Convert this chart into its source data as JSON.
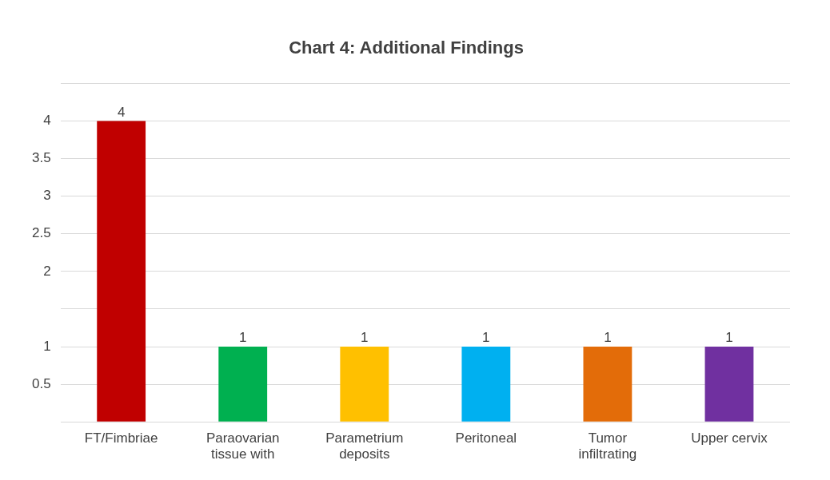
{
  "chart_data": {
    "type": "bar",
    "title": "Chart 4: Additional Findings",
    "categories": [
      "FT/Fimbriae",
      "Paraovarian tissue with",
      "Parametrium deposits",
      "Peritoneal",
      "Tumor infiltrating",
      "Upper cervix"
    ],
    "values": [
      4,
      1,
      1,
      1,
      1,
      1
    ],
    "colors": [
      "#c00000",
      "#00b050",
      "#ffc000",
      "#00b0f0",
      "#e36c09",
      "#7030a0"
    ],
    "ylim": [
      0,
      4.5
    ],
    "yticks": [
      {
        "value": 0,
        "label": null
      },
      0.5,
      1,
      {
        "value": 1.5,
        "label": null
      },
      2,
      2.5,
      3,
      3.5,
      4,
      {
        "value": 4.5,
        "label": null
      }
    ],
    "grid": "y",
    "data_labels": true
  }
}
